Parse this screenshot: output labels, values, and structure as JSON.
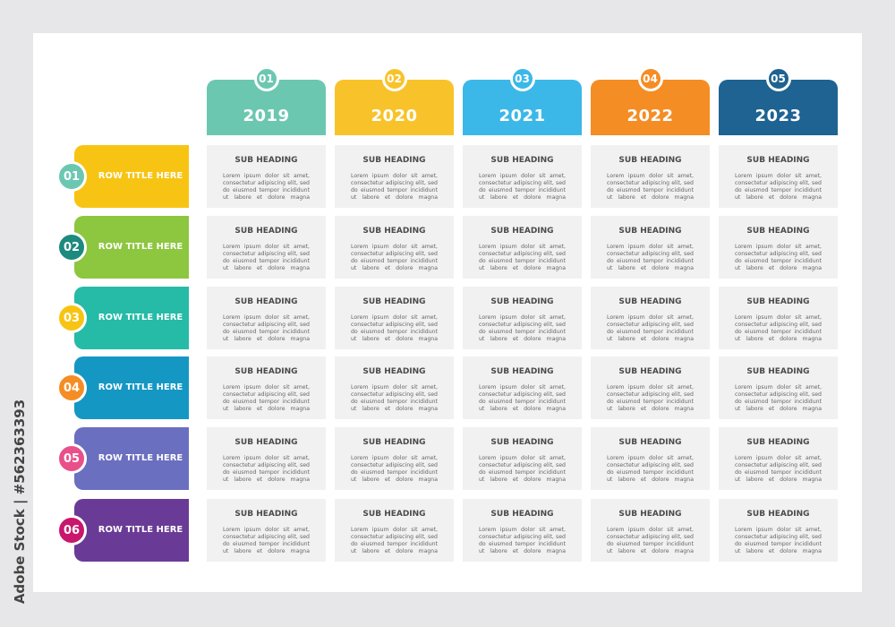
{
  "columns": [
    {
      "num": "01",
      "year": "2019",
      "color": "#6cc7b1"
    },
    {
      "num": "02",
      "year": "2020",
      "color": "#f8c32a"
    },
    {
      "num": "03",
      "year": "2021",
      "color": "#3cb8e8"
    },
    {
      "num": "04",
      "year": "2022",
      "color": "#f58d25"
    },
    {
      "num": "05",
      "year": "2023",
      "color": "#1e6391"
    }
  ],
  "rows": [
    {
      "num": "01",
      "title": "ROW TITLE HERE",
      "color": "#f8c413",
      "badge_color": "#6cc7b1"
    },
    {
      "num": "02",
      "title": "ROW TITLE HERE",
      "color": "#8dc63f",
      "badge_color": "#1d8a7f"
    },
    {
      "num": "03",
      "title": "ROW TITLE HERE",
      "color": "#25bba7",
      "badge_color": "#f8c413"
    },
    {
      "num": "04",
      "title": "ROW TITLE HERE",
      "color": "#1597c4",
      "badge_color": "#f58d25"
    },
    {
      "num": "05",
      "title": "ROW TITLE HERE",
      "color": "#6b6fc0",
      "badge_color": "#e9508a"
    },
    {
      "num": "06",
      "title": "ROW TITLE HERE",
      "color": "#6a3b96",
      "badge_color": "#c8176d"
    }
  ],
  "cell": {
    "sub_heading": "SUB HEADING",
    "body": "Lorem ipsum dolor sit amet, consectetur adipiscing elit, sed do eiusmod tempor incididunt ut labore et dolore magna aliqua."
  },
  "stock_id": "Adobe Stock | #562363393"
}
